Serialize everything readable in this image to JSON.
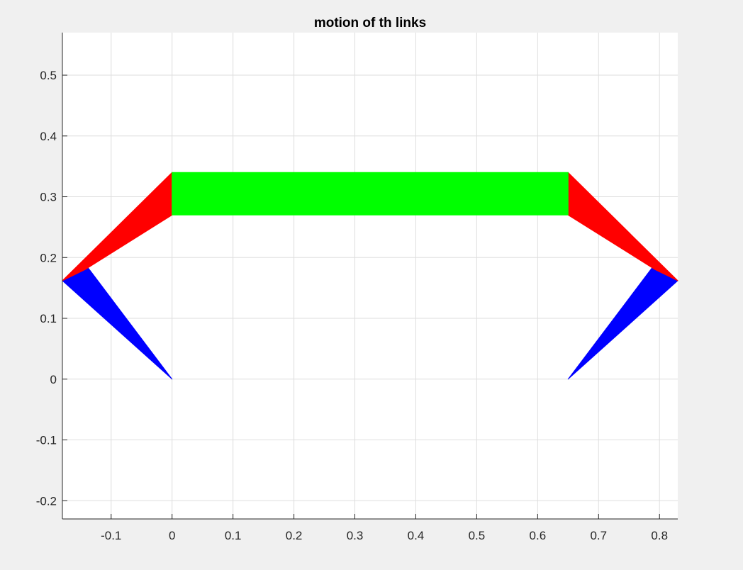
{
  "chart_data": {
    "type": "area",
    "title": "motion of th links",
    "xlabel": "",
    "ylabel": "",
    "xlim": [
      -0.18,
      0.83
    ],
    "ylim": [
      -0.23,
      0.57
    ],
    "grid": true,
    "x_ticks": [
      -0.1,
      0,
      0.1,
      0.2,
      0.3,
      0.4,
      0.5,
      0.6,
      0.7,
      0.8
    ],
    "x_tick_labels": [
      "-0.1",
      "0",
      "0.1",
      "0.2",
      "0.3",
      "0.4",
      "0.5",
      "0.6",
      "0.7",
      "0.8"
    ],
    "y_ticks": [
      -0.2,
      -0.1,
      0,
      0.1,
      0.2,
      0.3,
      0.4,
      0.5
    ],
    "y_tick_labels": [
      "-0.2",
      "-0.1",
      "0",
      "0.1",
      "0.2",
      "0.3",
      "0.4",
      "0.5"
    ],
    "links": [
      {
        "color": "#0000ff",
        "points": [
          [
            0,
            0
          ],
          [
            -0.18,
            0.162
          ],
          [
            -0.143,
            0.19
          ]
        ]
      },
      {
        "color": "#0000ff",
        "points": [
          [
            0.65,
            0
          ],
          [
            0.83,
            0.162
          ],
          [
            0.793,
            0.19
          ]
        ]
      },
      {
        "color": "#ff0000",
        "points": [
          [
            0,
            0.34
          ],
          [
            0,
            0.27
          ],
          [
            -0.143,
            0.18
          ],
          [
            -0.18,
            0.162
          ]
        ]
      },
      {
        "color": "#ff0000",
        "points": [
          [
            0.65,
            0.34
          ],
          [
            0.65,
            0.27
          ],
          [
            0.793,
            0.18
          ],
          [
            0.83,
            0.162
          ]
        ]
      },
      {
        "color": "#00ff00",
        "points": [
          [
            0,
            0.27
          ],
          [
            0.65,
            0.27
          ],
          [
            0.65,
            0.34
          ],
          [
            0,
            0.34
          ]
        ]
      }
    ]
  }
}
